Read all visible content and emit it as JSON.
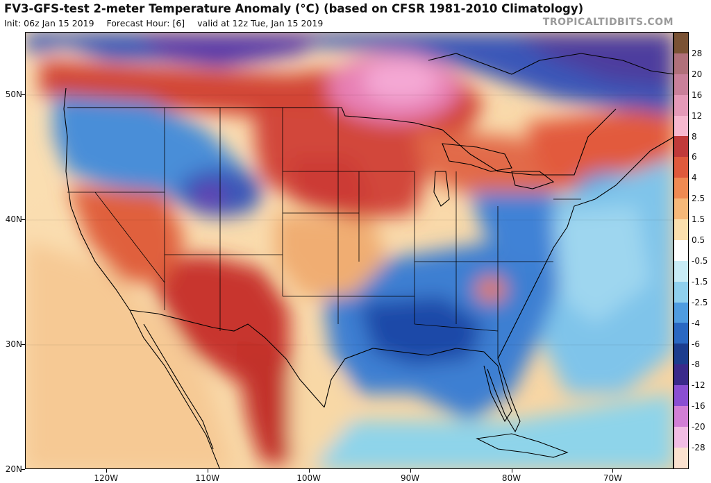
{
  "header": {
    "title": "FV3-GFS-test 2-meter Temperature Anomaly (°C) (based on CFSR 1981-2010 Climatology)",
    "init": "Init: 06z Jan 15 2019",
    "forecast_hour": "Forecast Hour: [6]",
    "valid": "valid at 12z Tue, Jan 15 2019"
  },
  "credit": "TROPICALTIDBITS.COM",
  "map": {
    "lon_range": [
      -128,
      -64
    ],
    "lat_range": [
      20,
      55
    ],
    "lat_labels": [
      "20N",
      "30N",
      "40N",
      "50N"
    ],
    "lat_values": [
      20,
      30,
      40,
      50
    ],
    "lon_labels": [
      "120W",
      "110W",
      "100W",
      "90W",
      "80W",
      "70W"
    ],
    "lon_values": [
      -120,
      -110,
      -100,
      -90,
      -80,
      -70
    ]
  },
  "colorbar": {
    "labels": [
      "28",
      "20",
      "16",
      "12",
      "8",
      "6",
      "4",
      "2.5",
      "1.5",
      "0.5",
      "-0.5",
      "-1.5",
      "-2.5",
      "-4",
      "-6",
      "-8",
      "-12",
      "-16",
      "-20",
      "-28"
    ],
    "colors": [
      "#7a5234",
      "#b0707a",
      "#c9809a",
      "#e59ab8",
      "#f7b8cf",
      "#c03a3a",
      "#df5a3c",
      "#ef8a52",
      "#f6b878",
      "#fbe0ad",
      "#ffffff",
      "#c8ecf6",
      "#8fd0ee",
      "#4f9ce0",
      "#2a68c2",
      "#1c3d8e",
      "#3a2a8a",
      "#8a4fd2",
      "#d27fd6",
      "#f2bde4",
      "#fbe2cf"
    ]
  },
  "colors": {
    "warm_strong": "#c22a2a",
    "warm": "#e8643f",
    "warm_light": "#f4b27a",
    "pale": "#fbe2bb",
    "cool_light": "#8ed0ee",
    "cool": "#3f86d6",
    "cool_strong": "#1f4ca8",
    "very_cold": "#5b3aa8",
    "hot_pink": "#f0a3cf"
  }
}
